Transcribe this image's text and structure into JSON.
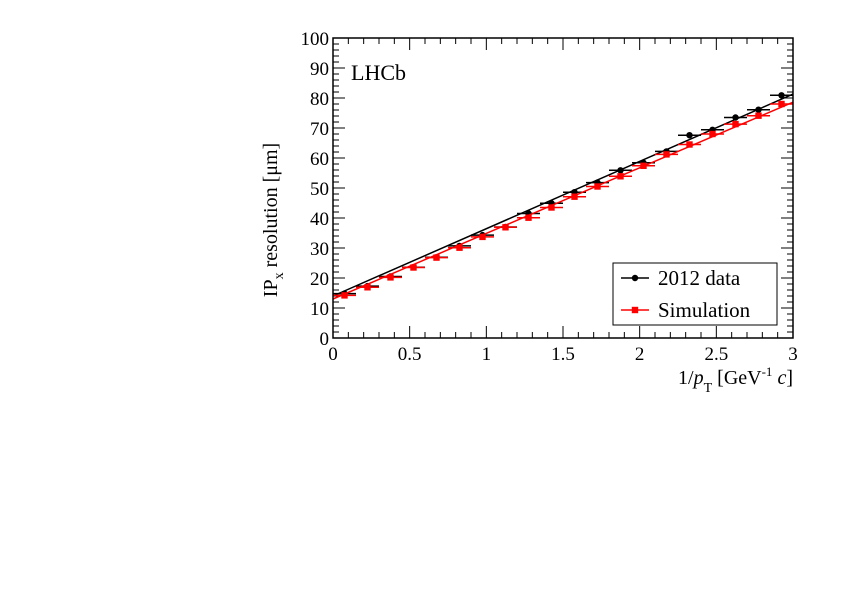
{
  "chart_data": {
    "type": "scatter",
    "experiment_label": "LHCb",
    "ylabel": {
      "main": "IP",
      "sub": "x",
      "rest": " resolution [μm]"
    },
    "xlabel": {
      "prefix": "1/",
      "var": "p",
      "sub": "T",
      "unit_open": " [GeV",
      "unit_sup": "-1",
      "unit_var": " c",
      "unit_close": "]"
    },
    "xlim": [
      0,
      3
    ],
    "ylim": [
      0,
      100
    ],
    "x_ticks": [
      0,
      0.5,
      1,
      1.5,
      2,
      2.5,
      3
    ],
    "x_tick_labels": [
      "0",
      "0.5",
      "1",
      "1.5",
      "2",
      "2.5",
      "3"
    ],
    "y_ticks": [
      0,
      10,
      20,
      30,
      40,
      50,
      60,
      70,
      80,
      90,
      100
    ],
    "y_tick_labels": [
      "0",
      "10",
      "20",
      "30",
      "40",
      "50",
      "60",
      "70",
      "80",
      "90",
      "100"
    ],
    "legend_position": "bottom-right",
    "legend": [
      "2012 data",
      "Simulation"
    ],
    "series": [
      {
        "name": "2012 data",
        "color": "#000000",
        "marker": "circle",
        "x_half_width": 0.075,
        "x": [
          0.075,
          0.225,
          0.375,
          0.525,
          0.675,
          0.825,
          0.975,
          1.125,
          1.275,
          1.425,
          1.575,
          1.725,
          1.875,
          2.025,
          2.175,
          2.325,
          2.475,
          2.625,
          2.775,
          2.925
        ],
        "y": [
          14.8,
          17.3,
          20.5,
          23.6,
          26.9,
          30.7,
          34.3,
          37.0,
          41.5,
          44.9,
          48.6,
          51.8,
          55.9,
          58.4,
          62.2,
          67.6,
          69.4,
          73.5,
          76.1,
          80.9
        ],
        "fit": {
          "x0": 0,
          "y0": 14.0,
          "x1": 3,
          "y1": 81.3
        }
      },
      {
        "name": "Simulation",
        "color": "#ff0000",
        "marker": "square",
        "x_half_width": 0.075,
        "x": [
          0.075,
          0.225,
          0.375,
          0.525,
          0.675,
          0.825,
          0.975,
          1.125,
          1.275,
          1.425,
          1.575,
          1.725,
          1.875,
          2.025,
          2.175,
          2.325,
          2.475,
          2.625,
          2.775,
          2.925
        ],
        "y": [
          14.2,
          16.9,
          20.2,
          23.5,
          26.8,
          30.1,
          33.7,
          36.9,
          40.1,
          43.5,
          47.1,
          50.5,
          53.9,
          57.4,
          61.2,
          64.5,
          68.0,
          71.3,
          74.1,
          78.0
        ],
        "fit": {
          "x0": 0,
          "y0": 13.0,
          "x1": 3,
          "y1": 78.6
        }
      }
    ]
  }
}
